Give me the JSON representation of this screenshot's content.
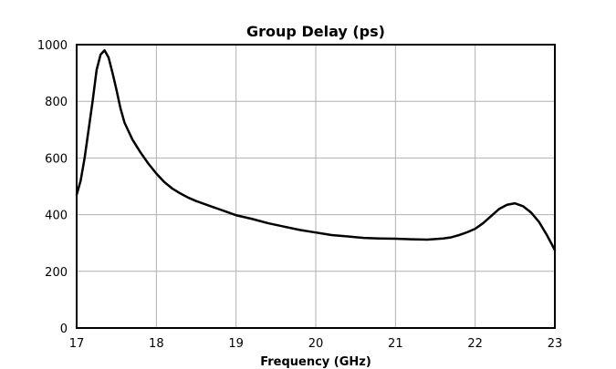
{
  "chart_data": {
    "type": "line",
    "title": "Group Delay (ps)",
    "xlabel": "Frequency (GHz)",
    "ylabel": "",
    "xlim": [
      17,
      23
    ],
    "ylim": [
      0,
      1000
    ],
    "xticks": [
      17,
      18,
      19,
      20,
      21,
      22,
      23
    ],
    "yticks": [
      0,
      200,
      400,
      600,
      800,
      1000
    ],
    "grid": true,
    "legend": "none",
    "line_color": "#000000",
    "grid_color": "#b0b0b0",
    "series": [
      {
        "x": [
          17.0,
          17.05,
          17.1,
          17.15,
          17.2,
          17.25,
          17.3,
          17.35,
          17.4,
          17.45,
          17.5,
          17.55,
          17.6,
          17.7,
          17.8,
          17.9,
          18.0,
          18.1,
          18.2,
          18.3,
          18.4,
          18.5,
          18.6,
          18.7,
          18.8,
          18.9,
          19.0,
          19.2,
          19.4,
          19.6,
          19.8,
          20.0,
          20.2,
          20.4,
          20.6,
          20.8,
          21.0,
          21.2,
          21.4,
          21.6,
          21.7,
          21.8,
          21.9,
          22.0,
          22.1,
          22.2,
          22.3,
          22.4,
          22.5,
          22.6,
          22.7,
          22.8,
          22.9,
          23.0
        ],
        "y": [
          470,
          520,
          600,
          700,
          800,
          910,
          965,
          980,
          955,
          900,
          840,
          775,
          725,
          665,
          620,
          580,
          545,
          515,
          492,
          475,
          460,
          448,
          438,
          428,
          418,
          408,
          398,
          385,
          370,
          358,
          346,
          337,
          328,
          323,
          318,
          316,
          315,
          313,
          312,
          316,
          320,
          328,
          338,
          350,
          370,
          395,
          420,
          435,
          440,
          430,
          408,
          375,
          328,
          275
        ]
      }
    ]
  }
}
